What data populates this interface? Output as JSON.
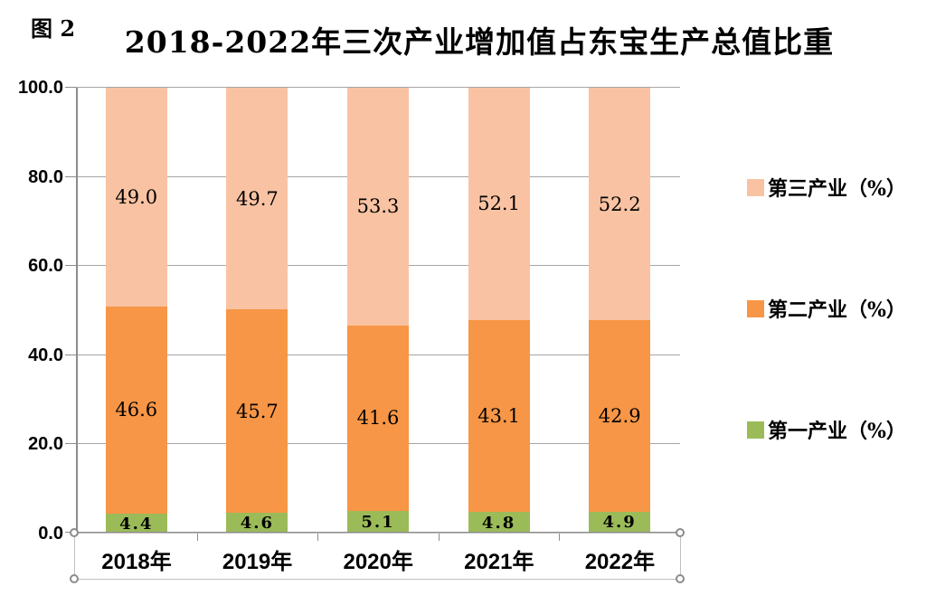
{
  "figure_label": "图 2",
  "title": "2018-2022年三次产业增加值占东宝生产总值比重",
  "chart_data": {
    "type": "bar",
    "stacked": true,
    "title": "2018-2022年三次产业增加值占东宝生产总值比重",
    "categories": [
      "2018年",
      "2019年",
      "2020年",
      "2021年",
      "2022年"
    ],
    "series": [
      {
        "name": "第一产业（%）",
        "color": "#9bbb59",
        "values": [
          4.4,
          4.6,
          5.1,
          4.8,
          4.9
        ]
      },
      {
        "name": "第二产业（%）",
        "color": "#f79646",
        "values": [
          46.6,
          45.7,
          41.6,
          43.1,
          42.9
        ]
      },
      {
        "name": "第三产业（%）",
        "color": "#f9c3a3",
        "values": [
          49.0,
          49.7,
          53.3,
          52.1,
          52.2
        ]
      }
    ],
    "ylim": [
      0,
      100
    ],
    "yticks": [
      0,
      20,
      40,
      60,
      80,
      100
    ],
    "ytick_labels": [
      "0.0",
      "20.0",
      "40.0",
      "60.0",
      "80.0",
      "100.0"
    ],
    "grid": true,
    "data_labels": true,
    "legend_position": "right",
    "legend_order": [
      "第三产业（%）",
      "第二产业（%）",
      "第一产业（%）"
    ],
    "colors": {
      "axis": "#8c8c8c",
      "gridline": "#a6a6a6",
      "selection_outline": "#bfbfbf",
      "text": "#000000"
    }
  }
}
